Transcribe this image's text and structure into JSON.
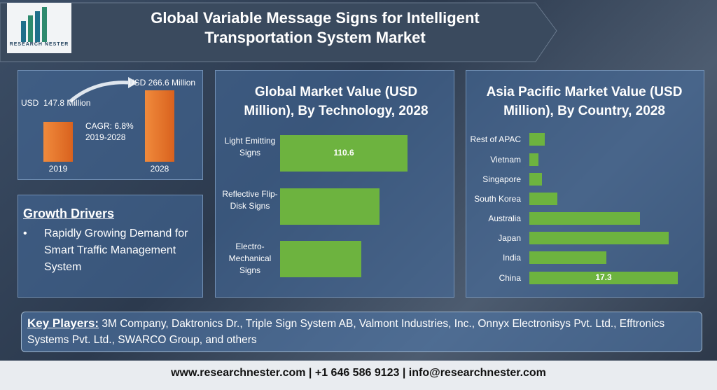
{
  "header": {
    "title": "Global Variable Message Signs for Intelligent Transportation System Market",
    "logo": "RESEARCH NESTER"
  },
  "chart_data": [
    {
      "type": "bar",
      "categories": [
        "2019",
        "2028"
      ],
      "values": [
        147.8,
        266.6
      ],
      "value_labels": [
        "USD  147.8 Million",
        "USD 266.6 Million"
      ],
      "annotation": "CAGR: 6.8%",
      "annotation_period": "2019-2028",
      "color": "#e8762b"
    },
    {
      "type": "hbar",
      "title": "Global Market Value (USD Million), By Technology, 2028",
      "categories": [
        "Light Emitting Signs",
        "Reflective Flip-Disk Signs",
        "Electro-Mechanical Signs"
      ],
      "values": [
        110.6,
        86,
        70.5
      ],
      "value_labels": [
        "110.6",
        null,
        null
      ],
      "color": "#6db33f"
    },
    {
      "type": "hbar",
      "title": "Asia Pacific Market Value (USD Million), By Country, 2028",
      "categories": [
        "Rest of APAC",
        "Vietnam",
        "Singapore",
        "South Korea",
        "Australia",
        "Japan",
        "India",
        "China"
      ],
      "values": [
        1.8,
        1.1,
        1.5,
        3.3,
        12.9,
        16.2,
        9.0,
        17.3
      ],
      "value_labels": [
        null,
        null,
        null,
        null,
        null,
        null,
        null,
        "17.3"
      ],
      "color": "#6db33f"
    }
  ],
  "growth_drivers": {
    "title": "Growth Drivers",
    "items": [
      "Rapidly Growing Demand for Smart Traffic Management System"
    ]
  },
  "key_players": {
    "label": "Key Players:",
    "text": "3M Company, Daktronics Dr., Triple Sign System AB, Valmont Industries, Inc., Onnyx Electronisys Pvt. Ltd., Efftronics Systems Pvt. Ltd., SWARCO Group, and others"
  },
  "footer": "www.researchnester.com | +1 646 586 9123 | info@researchnester.com"
}
